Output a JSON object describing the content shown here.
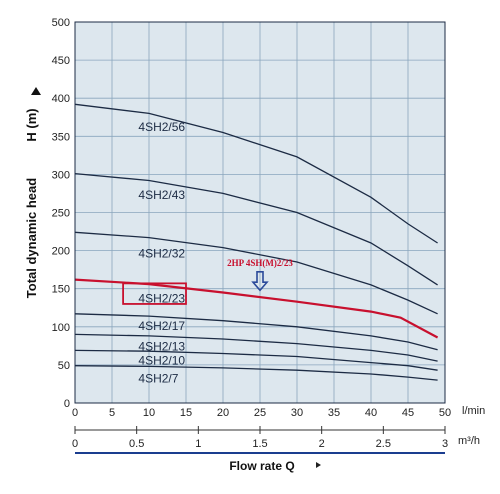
{
  "chart_data": {
    "type": "line",
    "ylabel": "Total dynamic head",
    "ylabel_unit": "H (m)",
    "xlabel": "Flow rate Q",
    "x_primary_unit": "l/min",
    "x_secondary_unit": "m³/h",
    "xlim": [
      0,
      50
    ],
    "ylim": [
      0,
      500
    ],
    "y_ticks": [
      "0",
      "50",
      "100",
      "150",
      "200",
      "250",
      "300",
      "350",
      "400",
      "450",
      "500"
    ],
    "x_ticks_lpm": [
      "0",
      "5",
      "10",
      "15",
      "20",
      "25",
      "30",
      "35",
      "40",
      "45",
      "50"
    ],
    "x_ticks_m3h": [
      "0",
      "0.5",
      "1",
      "1.5",
      "2",
      "2.5",
      "3"
    ],
    "x_ticks_m3h_values": [
      0,
      0.5,
      1,
      1.5,
      2,
      2.5,
      3
    ],
    "grid": true,
    "background_color": "#dde7ee",
    "grid_color": "#8aa6bd",
    "curve_color": "#1c2b44",
    "highlight_color": "#c8102e",
    "series": [
      {
        "name": "4SH2/56",
        "x": [
          0,
          10,
          20,
          30,
          40,
          45,
          49
        ],
        "y": [
          392,
          380,
          355,
          323,
          270,
          235,
          210
        ]
      },
      {
        "name": "4SH2/43",
        "x": [
          0,
          10,
          20,
          30,
          40,
          45,
          49
        ],
        "y": [
          301,
          292,
          275,
          250,
          210,
          180,
          155
        ]
      },
      {
        "name": "4SH2/32",
        "x": [
          0,
          10,
          20,
          30,
          40,
          45,
          49
        ],
        "y": [
          224,
          217,
          204,
          185,
          155,
          135,
          117
        ]
      },
      {
        "name": "4SH2/23",
        "x": [
          0,
          10,
          20,
          30,
          40,
          44,
          49
        ],
        "y": [
          162,
          156,
          145,
          133,
          120,
          112,
          86
        ],
        "highlight": true
      },
      {
        "name": "4SH2/17",
        "x": [
          0,
          10,
          20,
          30,
          40,
          45,
          49
        ],
        "y": [
          117,
          114,
          108,
          100,
          88,
          80,
          70
        ]
      },
      {
        "name": "4SH2/13",
        "x": [
          0,
          10,
          20,
          30,
          40,
          45,
          49
        ],
        "y": [
          90,
          88,
          84,
          78,
          69,
          63,
          55
        ]
      },
      {
        "name": "4SH2/10",
        "x": [
          0,
          10,
          20,
          30,
          40,
          45,
          49
        ],
        "y": [
          69,
          68,
          65,
          61,
          53,
          49,
          43
        ]
      },
      {
        "name": "4SH2/7",
        "x": [
          0,
          10,
          20,
          30,
          40,
          45,
          49
        ],
        "y": [
          49,
          48,
          46,
          43,
          38,
          34,
          30
        ]
      }
    ],
    "labels": [
      {
        "series": "4SH2/56",
        "x": 11,
        "y": 362
      },
      {
        "series": "4SH2/43",
        "x": 11,
        "y": 273
      },
      {
        "series": "4SH2/32",
        "x": 11,
        "y": 196
      },
      {
        "series": "4SH2/23",
        "x": 11,
        "y": 137
      },
      {
        "series": "4SH2/17",
        "x": 11,
        "y": 101
      },
      {
        "series": "4SH2/13",
        "x": 11,
        "y": 74
      },
      {
        "series": "4SH2/10",
        "x": 11,
        "y": 56
      },
      {
        "series": "4SH2/7",
        "x": 11,
        "y": 32
      }
    ],
    "highlight_box": {
      "series": "4SH2/23",
      "x0": 6.5,
      "x1": 15,
      "y0": 130,
      "y1": 157
    },
    "annotation": {
      "text": "2HP 4SH(M)2/23",
      "x": 25,
      "y": 180,
      "arrow_tip_y": 148
    }
  }
}
